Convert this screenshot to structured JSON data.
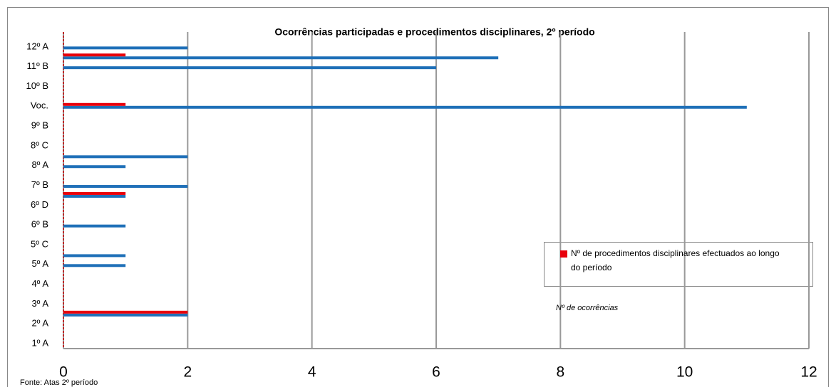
{
  "chart_data": {
    "type": "hbar",
    "title": "Ocorrências participadas e procedimentos disciplinares, 2º período",
    "source": "Fonte: Atas 2º período",
    "categories": [
      "1º A",
      null,
      "2º A",
      null,
      "3º A",
      null,
      "4º A",
      null,
      "5º A",
      null,
      "5º C",
      null,
      "6º B",
      null,
      "6º D",
      null,
      "7º B",
      null,
      "8º A",
      null,
      "8º C",
      null,
      "9º B",
      null,
      "Voc.",
      null,
      "10º B",
      null,
      "11º B",
      null,
      "12º A",
      null
    ],
    "series": [
      {
        "name": "Nº de procedimentos disciplinares efectuados ao longo do período",
        "color": "#e8000b",
        "values": [
          0,
          0,
          0,
          2,
          0,
          0,
          0,
          0,
          0,
          0,
          0,
          0,
          0,
          0,
          0,
          1,
          0,
          0,
          0,
          0,
          0,
          0,
          0,
          0,
          1,
          0,
          0,
          0,
          0,
          1,
          0,
          0
        ]
      },
      {
        "name": "Nº de ocorrências",
        "color": "#1f70b8",
        "values": [
          0,
          0,
          0,
          2,
          0,
          0,
          0,
          0,
          1,
          1,
          0,
          0,
          1,
          0,
          0,
          1,
          2,
          0,
          1,
          2,
          0,
          0,
          0,
          0,
          11,
          0,
          0,
          0,
          6,
          7,
          2,
          0
        ]
      }
    ],
    "xlim": [
      0,
      12
    ],
    "xticks": [
      0,
      2,
      4,
      6,
      8,
      10,
      12
    ],
    "grid": true
  }
}
